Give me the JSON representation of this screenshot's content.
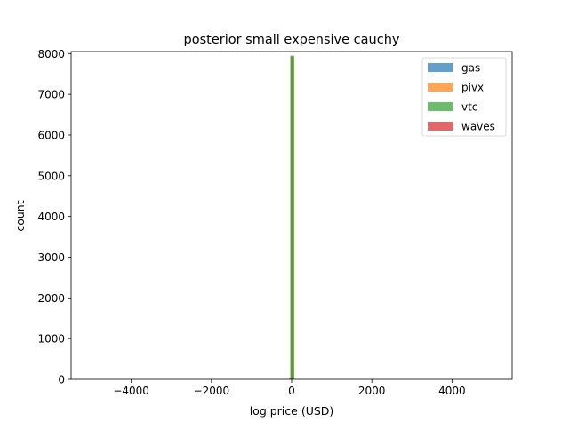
{
  "chart_data": {
    "type": "bar",
    "title": "posterior small expensive cauchy",
    "xlabel": "log price (USD)",
    "ylabel": "count",
    "xlim": [
      -5500,
      5500
    ],
    "ylim": [
      0,
      8050
    ],
    "xticks": [
      -4000,
      -2000,
      0,
      2000,
      4000
    ],
    "xtick_labels": [
      "−4000",
      "−2000",
      "0",
      "2000",
      "4000"
    ],
    "yticks": [
      0,
      1000,
      2000,
      3000,
      4000,
      5000,
      6000,
      7000,
      8000
    ],
    "ytick_labels": [
      "0",
      "1000",
      "2000",
      "3000",
      "4000",
      "5000",
      "6000",
      "7000",
      "8000"
    ],
    "legend_position": "top-right",
    "grid": false,
    "series": [
      {
        "name": "gas",
        "color": "#1f77b4",
        "bins": [
          {
            "x0": -30,
            "x1": 60,
            "count": 7950
          }
        ]
      },
      {
        "name": "pivx",
        "color": "#ff7f0e",
        "bins": [
          {
            "x0": -30,
            "x1": 60,
            "count": 7940
          }
        ]
      },
      {
        "name": "vtc",
        "color": "#2ca02c",
        "bins": [
          {
            "x0": -30,
            "x1": 60,
            "count": 7930
          }
        ]
      },
      {
        "name": "waves",
        "color": "#d62728",
        "bins": [
          {
            "x0": -60,
            "x1": 30,
            "count": 20
          }
        ]
      }
    ]
  }
}
